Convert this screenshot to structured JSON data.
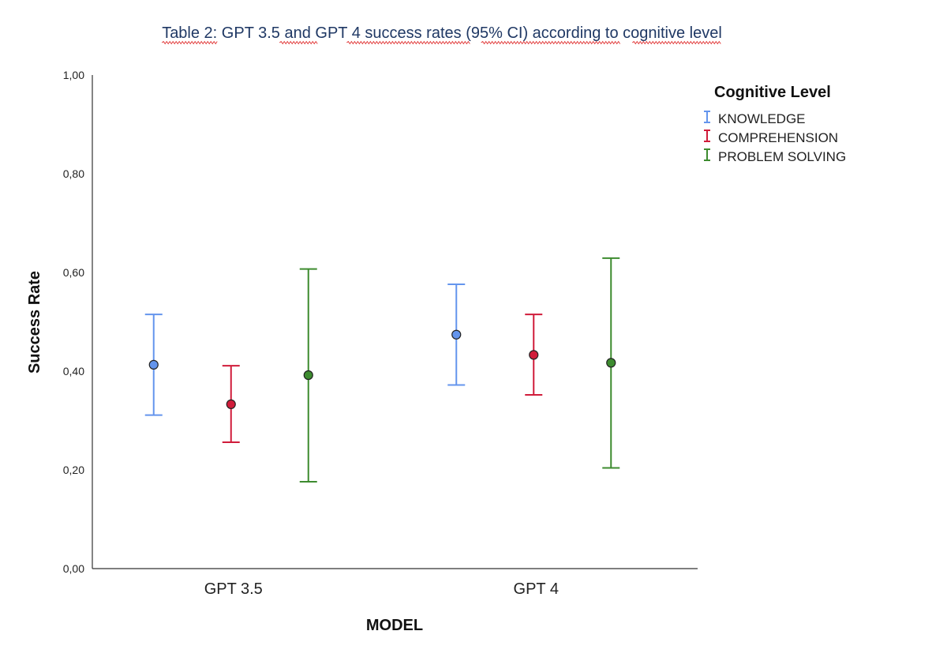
{
  "chart_data": {
    "type": "errorbar",
    "title": "Table 2: GPT 3.5 and GPT 4 success rates (95% CI) according to cognitive level",
    "xlabel": "MODEL",
    "ylabel": "Success Rate",
    "ylim": [
      0,
      1
    ],
    "y_ticks": [
      "0,00",
      "0,20",
      "0,40",
      "0,60",
      "0,80",
      "1,00"
    ],
    "y_tick_values": [
      0,
      0.2,
      0.4,
      0.6,
      0.8,
      1.0
    ],
    "categories": [
      "GPT 3.5",
      "GPT 4"
    ],
    "legend_title": "Cognitive Level",
    "legend_position": "top-right",
    "series": [
      {
        "name": "KNOWLEDGE",
        "color": "#6495ed",
        "values": [
          0.413,
          0.474
        ],
        "lower": [
          0.311,
          0.372
        ],
        "upper": [
          0.515,
          0.576
        ]
      },
      {
        "name": "COMPREHENSION",
        "color": "#d01c3a",
        "values": [
          0.333,
          0.433
        ],
        "lower": [
          0.256,
          0.352
        ],
        "upper": [
          0.411,
          0.515
        ]
      },
      {
        "name": "PROBLEM SOLVING",
        "color": "#3d8b2f",
        "values": [
          0.392,
          0.417
        ],
        "lower": [
          0.176,
          0.204
        ],
        "upper": [
          0.607,
          0.629
        ]
      }
    ]
  }
}
